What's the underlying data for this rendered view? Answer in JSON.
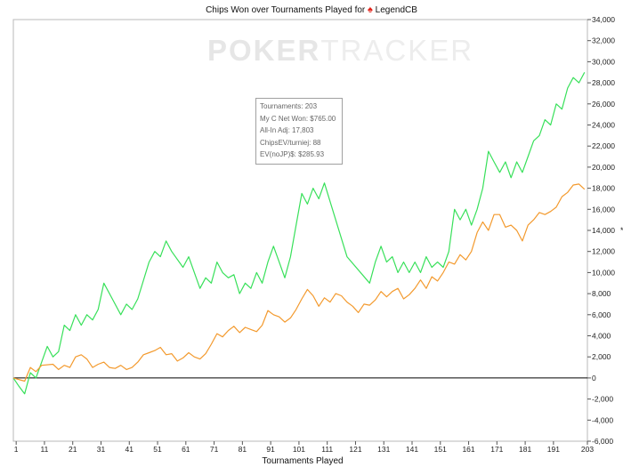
{
  "title_prefix": "Chips Won over Tournaments Played for",
  "player": "LegendCB",
  "watermark": {
    "bold": "POKER",
    "light": "TRACKER"
  },
  "tooltip": {
    "lines": [
      "Tournaments: 203",
      "My C Net Won: $765.00",
      "All-In Adj: 17,803",
      "ChipsEV/turniej: 88",
      "EV(noJP)$: $285.93"
    ]
  },
  "colors": {
    "green": "#38e05a",
    "orange": "#f39a2e",
    "zero_line": "#000000"
  },
  "chart_data": {
    "type": "line",
    "title": "Chips Won over Tournaments Played for LegendCB",
    "xlabel": "Tournaments Played",
    "ylabel": "",
    "xlim": [
      0,
      203
    ],
    "ylim": [
      -6000,
      34000
    ],
    "x_ticks": [
      1,
      11,
      21,
      31,
      41,
      51,
      61,
      71,
      81,
      91,
      101,
      111,
      121,
      131,
      141,
      151,
      161,
      171,
      181,
      191,
      203
    ],
    "y_ticks": [
      -6000,
      -4000,
      -2000,
      0,
      2000,
      4000,
      6000,
      8000,
      10000,
      12000,
      14000,
      16000,
      18000,
      20000,
      22000,
      24000,
      26000,
      28000,
      30000,
      32000,
      34000
    ],
    "y_tick_labels": [
      "-6,000",
      "-4,000",
      "-2,000",
      "0",
      "2,000",
      "4,000",
      "6,000",
      "8,000",
      "10,000",
      "12,000",
      "14,000",
      "16,000",
      "18,000",
      "20,000",
      "22,000",
      "24,000",
      "26,000",
      "28,000",
      "30,000",
      "32,000",
      "34,000"
    ],
    "series": [
      {
        "color": "#38e05a",
        "points": [
          [
            0,
            0
          ],
          [
            2,
            -800
          ],
          [
            4,
            -1500
          ],
          [
            6,
            500
          ],
          [
            8,
            0
          ],
          [
            10,
            1500
          ],
          [
            12,
            3000
          ],
          [
            14,
            2000
          ],
          [
            16,
            2500
          ],
          [
            18,
            5000
          ],
          [
            20,
            4500
          ],
          [
            22,
            6000
          ],
          [
            24,
            5000
          ],
          [
            26,
            6000
          ],
          [
            28,
            5500
          ],
          [
            30,
            6500
          ],
          [
            32,
            9000
          ],
          [
            35,
            7500
          ],
          [
            38,
            6000
          ],
          [
            40,
            7000
          ],
          [
            42,
            6500
          ],
          [
            44,
            7500
          ],
          [
            48,
            11000
          ],
          [
            50,
            12000
          ],
          [
            52,
            11500
          ],
          [
            54,
            13000
          ],
          [
            56,
            12000
          ],
          [
            60,
            10500
          ],
          [
            62,
            11500
          ],
          [
            66,
            8500
          ],
          [
            68,
            9500
          ],
          [
            70,
            9000
          ],
          [
            72,
            11000
          ],
          [
            74,
            10000
          ],
          [
            76,
            9500
          ],
          [
            78,
            9800
          ],
          [
            80,
            8000
          ],
          [
            82,
            9000
          ],
          [
            84,
            8500
          ],
          [
            86,
            10000
          ],
          [
            88,
            9000
          ],
          [
            90,
            11000
          ],
          [
            92,
            12500
          ],
          [
            94,
            11000
          ],
          [
            96,
            9500
          ],
          [
            98,
            11500
          ],
          [
            100,
            14500
          ],
          [
            102,
            17500
          ],
          [
            104,
            16500
          ],
          [
            106,
            18000
          ],
          [
            108,
            17000
          ],
          [
            110,
            18500
          ],
          [
            118,
            11500
          ],
          [
            126,
            9000
          ],
          [
            128,
            11000
          ],
          [
            130,
            12500
          ],
          [
            132,
            11000
          ],
          [
            134,
            11500
          ],
          [
            136,
            10000
          ],
          [
            138,
            11000
          ],
          [
            140,
            10000
          ],
          [
            142,
            11000
          ],
          [
            144,
            10000
          ],
          [
            146,
            11500
          ],
          [
            148,
            10500
          ],
          [
            150,
            11000
          ],
          [
            152,
            10500
          ],
          [
            154,
            12000
          ],
          [
            156,
            16000
          ],
          [
            158,
            15000
          ],
          [
            160,
            16000
          ],
          [
            162,
            14500
          ],
          [
            164,
            16000
          ],
          [
            166,
            18000
          ],
          [
            168,
            21500
          ],
          [
            170,
            20500
          ],
          [
            172,
            19500
          ],
          [
            174,
            20500
          ],
          [
            176,
            19000
          ],
          [
            178,
            20500
          ],
          [
            180,
            19500
          ],
          [
            182,
            21000
          ],
          [
            184,
            22500
          ],
          [
            186,
            23000
          ],
          [
            188,
            24500
          ],
          [
            190,
            24000
          ],
          [
            192,
            26000
          ],
          [
            194,
            25500
          ],
          [
            196,
            27500
          ],
          [
            198,
            28500
          ],
          [
            200,
            28000
          ],
          [
            202,
            29000
          ]
        ]
      },
      {
        "color": "#f39a2e",
        "points": [
          [
            0,
            0
          ],
          [
            4,
            -300
          ],
          [
            6,
            1000
          ],
          [
            8,
            600
          ],
          [
            10,
            1200
          ],
          [
            14,
            1300
          ],
          [
            16,
            800
          ],
          [
            18,
            1200
          ],
          [
            20,
            1000
          ],
          [
            22,
            2000
          ],
          [
            24,
            2200
          ],
          [
            26,
            1800
          ],
          [
            28,
            1000
          ],
          [
            30,
            1300
          ],
          [
            32,
            1500
          ],
          [
            34,
            1000
          ],
          [
            36,
            900
          ],
          [
            38,
            1200
          ],
          [
            40,
            800
          ],
          [
            42,
            1000
          ],
          [
            44,
            1500
          ],
          [
            46,
            2200
          ],
          [
            48,
            2400
          ],
          [
            50,
            2600
          ],
          [
            52,
            2900
          ],
          [
            54,
            2200
          ],
          [
            56,
            2300
          ],
          [
            58,
            1600
          ],
          [
            60,
            1900
          ],
          [
            62,
            2400
          ],
          [
            64,
            2000
          ],
          [
            66,
            1800
          ],
          [
            68,
            2300
          ],
          [
            70,
            3200
          ],
          [
            72,
            4200
          ],
          [
            74,
            3900
          ],
          [
            76,
            4500
          ],
          [
            78,
            4900
          ],
          [
            80,
            4300
          ],
          [
            82,
            4800
          ],
          [
            84,
            4600
          ],
          [
            86,
            4400
          ],
          [
            88,
            5000
          ],
          [
            90,
            6400
          ],
          [
            92,
            6000
          ],
          [
            94,
            5800
          ],
          [
            96,
            5300
          ],
          [
            98,
            5700
          ],
          [
            100,
            6500
          ],
          [
            102,
            7500
          ],
          [
            104,
            8400
          ],
          [
            106,
            7800
          ],
          [
            108,
            6800
          ],
          [
            110,
            7600
          ],
          [
            112,
            7200
          ],
          [
            114,
            8000
          ],
          [
            116,
            7800
          ],
          [
            118,
            7200
          ],
          [
            120,
            6800
          ],
          [
            122,
            6200
          ],
          [
            124,
            7000
          ],
          [
            126,
            6900
          ],
          [
            128,
            7400
          ],
          [
            130,
            8200
          ],
          [
            132,
            7700
          ],
          [
            134,
            8200
          ],
          [
            136,
            8500
          ],
          [
            138,
            7500
          ],
          [
            140,
            7900
          ],
          [
            142,
            8500
          ],
          [
            144,
            9300
          ],
          [
            146,
            8500
          ],
          [
            148,
            9600
          ],
          [
            150,
            9200
          ],
          [
            152,
            10000
          ],
          [
            154,
            11000
          ],
          [
            156,
            10800
          ],
          [
            158,
            11700
          ],
          [
            160,
            11200
          ],
          [
            162,
            12000
          ],
          [
            164,
            13800
          ],
          [
            166,
            14800
          ],
          [
            168,
            14000
          ],
          [
            170,
            15500
          ],
          [
            172,
            15500
          ],
          [
            174,
            14300
          ],
          [
            176,
            14500
          ],
          [
            178,
            14000
          ],
          [
            180,
            13000
          ],
          [
            182,
            14500
          ],
          [
            184,
            15000
          ],
          [
            186,
            15700
          ],
          [
            188,
            15500
          ],
          [
            190,
            15800
          ],
          [
            192,
            16200
          ],
          [
            194,
            17200
          ],
          [
            196,
            17600
          ],
          [
            198,
            18300
          ],
          [
            200,
            18400
          ],
          [
            202,
            17900
          ]
        ]
      }
    ]
  }
}
